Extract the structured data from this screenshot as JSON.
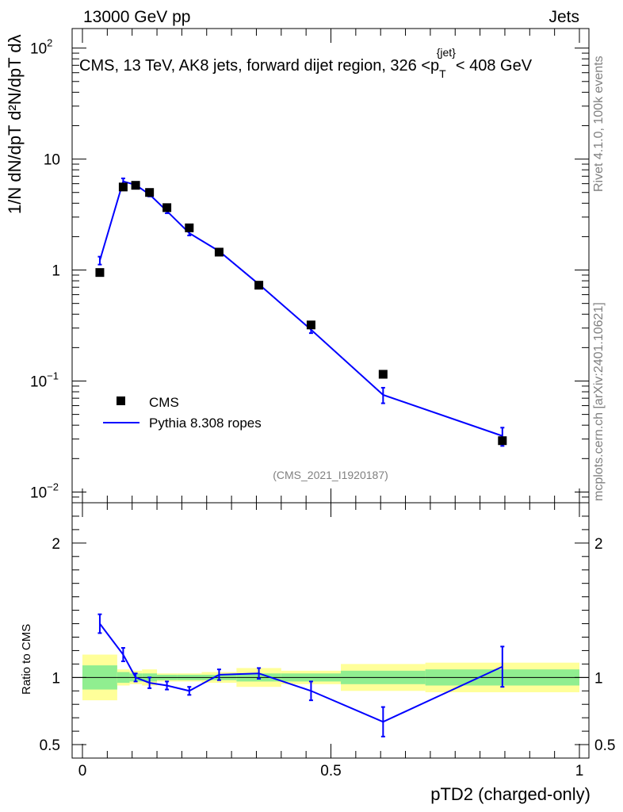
{
  "header": {
    "left": "13000 GeV pp",
    "right": "Jets"
  },
  "side_label_top": "Rivet 4.1.0,  100k events",
  "side_label_bottom": "mcplots.cern.ch [arXiv:2401.10621]",
  "ylabel_main": "1/N dN/dpT d²N/dpT dλ",
  "ylabel_ratio": "Ratio to CMS",
  "xlabel": "pTD2 (charged-only)",
  "analysis_tag": "(CMS_2021_I1920187)",
  "chart_data": {
    "type": "line",
    "title": "CMS, 13 TeV, AK8 jets, forward dijet region, 326 <p_T^{jet}< 408 GeV",
    "title_parts": {
      "prefix": "CMS, 13 TeV, AK8 jets, forward dijet region, 326 <p",
      "sup": "{jet}",
      "sub": "T",
      "suffix": "< 408 GeV"
    },
    "xlim": [
      0,
      1
    ],
    "ylim_main": [
      0.008,
      150
    ],
    "ylim_ratio": [
      0.4,
      2.3
    ],
    "x_ticks": [
      {
        "value": 0,
        "label": "0"
      },
      {
        "value": 0.5,
        "label": "0.5"
      },
      {
        "value": 1,
        "label": "1"
      }
    ],
    "y_ticks_main": [
      {
        "value": 0.01,
        "base": "10",
        "exp": "−2"
      },
      {
        "value": 0.1,
        "base": "10",
        "exp": "−1"
      },
      {
        "value": 1,
        "base": "1",
        "exp": ""
      },
      {
        "value": 10,
        "base": "10",
        "exp": ""
      },
      {
        "value": 100,
        "base": "10",
        "exp": "2"
      }
    ],
    "y_ticks_ratio": [
      {
        "value": 0.5,
        "label": "0.5"
      },
      {
        "value": 1,
        "label": "1"
      },
      {
        "value": 2,
        "label": "2"
      }
    ],
    "bins": [
      {
        "lo": 0.0,
        "hi": 0.07,
        "x": 0.035,
        "cms": 0.95,
        "mc": 1.22,
        "mc_err": 0.1,
        "band1": 0.09,
        "band2": 0.17
      },
      {
        "lo": 0.07,
        "hi": 0.095,
        "x": 0.082,
        "cms": 5.6,
        "mc": 6.3,
        "mc_err": 0.4,
        "band1": 0.04,
        "band2": 0.06
      },
      {
        "lo": 0.095,
        "hi": 0.12,
        "x": 0.107,
        "cms": 5.8,
        "mc": 5.85,
        "mc_err": 0.25,
        "band1": 0.03,
        "band2": 0.05
      },
      {
        "lo": 0.12,
        "hi": 0.15,
        "x": 0.135,
        "cms": 5.0,
        "mc": 4.8,
        "mc_err": 0.2,
        "band1": 0.03,
        "band2": 0.06
      },
      {
        "lo": 0.15,
        "hi": 0.19,
        "x": 0.17,
        "cms": 3.65,
        "mc": 3.4,
        "mc_err": 0.15,
        "band1": 0.02,
        "band2": 0.03
      },
      {
        "lo": 0.19,
        "hi": 0.24,
        "x": 0.215,
        "cms": 2.4,
        "mc": 2.15,
        "mc_err": 0.1,
        "band1": 0.02,
        "band2": 0.03
      },
      {
        "lo": 0.24,
        "hi": 0.31,
        "x": 0.275,
        "cms": 1.45,
        "mc": 1.48,
        "mc_err": 0.05,
        "band1": 0.02,
        "band2": 0.04
      },
      {
        "lo": 0.31,
        "hi": 0.4,
        "x": 0.355,
        "cms": 0.73,
        "mc": 0.745,
        "mc_err": 0.03,
        "band1": 0.03,
        "band2": 0.07
      },
      {
        "lo": 0.4,
        "hi": 0.52,
        "x": 0.46,
        "cms": 0.32,
        "mc": 0.29,
        "mc_err": 0.02,
        "band1": 0.03,
        "band2": 0.05
      },
      {
        "lo": 0.52,
        "hi": 0.69,
        "x": 0.605,
        "cms": 0.115,
        "mc": 0.075,
        "mc_err": 0.012,
        "band1": 0.05,
        "band2": 0.1
      },
      {
        "lo": 0.69,
        "hi": 1.0,
        "x": 0.845,
        "cms": 0.029,
        "mc": 0.032,
        "mc_err": 0.006,
        "band1": 0.06,
        "band2": 0.11
      }
    ],
    "ratio": {
      "x": [
        0.035,
        0.082,
        0.107,
        0.135,
        0.17,
        0.215,
        0.275,
        0.355,
        0.46,
        0.605,
        0.845
      ],
      "mc": [
        1.4,
        1.17,
        1.0,
        0.96,
        0.94,
        0.9,
        1.02,
        1.03,
        0.9,
        0.67,
        1.08
      ],
      "err": [
        0.07,
        0.05,
        0.03,
        0.04,
        0.03,
        0.03,
        0.04,
        0.04,
        0.07,
        0.11,
        0.15
      ]
    },
    "series": [
      {
        "name": "CMS",
        "color": "#000000",
        "marker": "square"
      },
      {
        "name": "Pythia 8.308 ropes",
        "color": "#0000ff",
        "marker": "line"
      }
    ],
    "band_colors": {
      "inner": "#90ee90",
      "outer": "#ffff99"
    }
  }
}
